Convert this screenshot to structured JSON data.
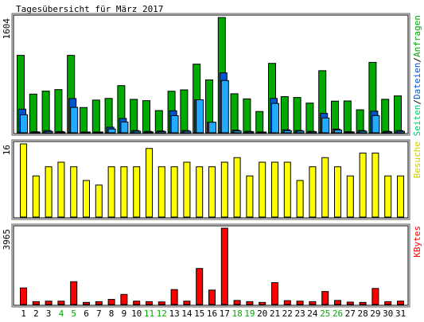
{
  "chart_data": {
    "type": "bar",
    "title": "Tagesübersicht für März 2017",
    "categories": [
      "1",
      "2",
      "3",
      "4",
      "5",
      "6",
      "7",
      "8",
      "9",
      "10",
      "11",
      "12",
      "13",
      "14",
      "15",
      "16",
      "17",
      "18",
      "19",
      "20",
      "21",
      "22",
      "23",
      "24",
      "25",
      "26",
      "27",
      "28",
      "29",
      "30",
      "31"
    ],
    "weekend_days": [
      "4",
      "5",
      "11",
      "12",
      "18",
      "19",
      "25",
      "26"
    ],
    "colors": {
      "anfragen": "#00aa00",
      "dateien": "#0055cc",
      "seiten": "#22aaff",
      "besuche": "#ffff00",
      "kbytes": "#ff0000",
      "weekday_label": "#000000",
      "weekend_label": "#00aa00"
    },
    "panels": [
      {
        "key": "hits",
        "ymax_label": "1604",
        "ymax": 1604,
        "legend": [
          {
            "text": "Seiten",
            "color": "#00cc66"
          },
          {
            "text": "/",
            "color": "#000000"
          },
          {
            "text": "Dateien",
            "color": "#0055cc"
          },
          {
            "text": "/",
            "color": "#000000"
          },
          {
            "text": "Anfragen",
            "color": "#00aa00"
          }
        ],
        "series": [
          {
            "name": "Anfragen",
            "values": [
              1077,
              538,
              580,
              601,
              1077,
              351,
              455,
              478,
              656,
              465,
              447,
              309,
              578,
              597,
              955,
              736,
              1604,
              543,
              472,
              296,
              966,
              503,
              491,
              413,
              864,
              440,
              443,
              320,
              980,
              466,
              513
            ]
          },
          {
            "name": "Dateien",
            "values": [
              329,
              15,
              31,
              18,
              476,
              5,
              11,
              78,
              199,
              31,
              20,
              25,
              306,
              31,
              459,
              146,
              834,
              36,
              20,
              9,
              478,
              42,
              32,
              20,
              270,
              51,
              15,
              31,
              301,
              20,
              31
            ]
          },
          {
            "name": "Seiten",
            "values": [
              251,
              8,
              19,
              11,
              353,
              4,
              9,
              52,
              149,
              21,
              12,
              17,
              238,
              21,
              459,
              146,
              727,
              25,
              14,
              6,
              408,
              30,
              24,
              14,
              205,
              38,
              11,
              22,
              240,
              14,
              20
            ]
          }
        ]
      },
      {
        "key": "visits",
        "ymax_label": "16",
        "ymax": 16,
        "legend": [
          {
            "text": "Besuche",
            "color": "#cccc00"
          }
        ],
        "series": [
          {
            "name": "Besuche",
            "values": [
              16,
              9,
              11,
              12,
              11,
              8,
              7,
              11,
              11,
              11,
              15,
              11,
              11,
              12,
              11,
              11,
              12,
              13,
              9,
              12,
              12,
              12,
              8,
              11,
              13,
              11,
              9,
              14,
              14,
              9,
              9
            ]
          }
        ]
      },
      {
        "key": "kbytes",
        "ymax_label": "3965",
        "ymax": 3965,
        "legend": [
          {
            "text": "KBytes",
            "color": "#ff0000"
          }
        ],
        "series": [
          {
            "name": "KBytes",
            "values": [
              860,
              150,
              175,
              175,
              1185,
              110,
              150,
              265,
              525,
              175,
              150,
              135,
              775,
              175,
              1870,
              750,
              3965,
              210,
              150,
              110,
              1135,
              200,
              175,
              150,
              675,
              210,
              125,
              110,
              835,
              150,
              175
            ]
          }
        ]
      }
    ]
  }
}
